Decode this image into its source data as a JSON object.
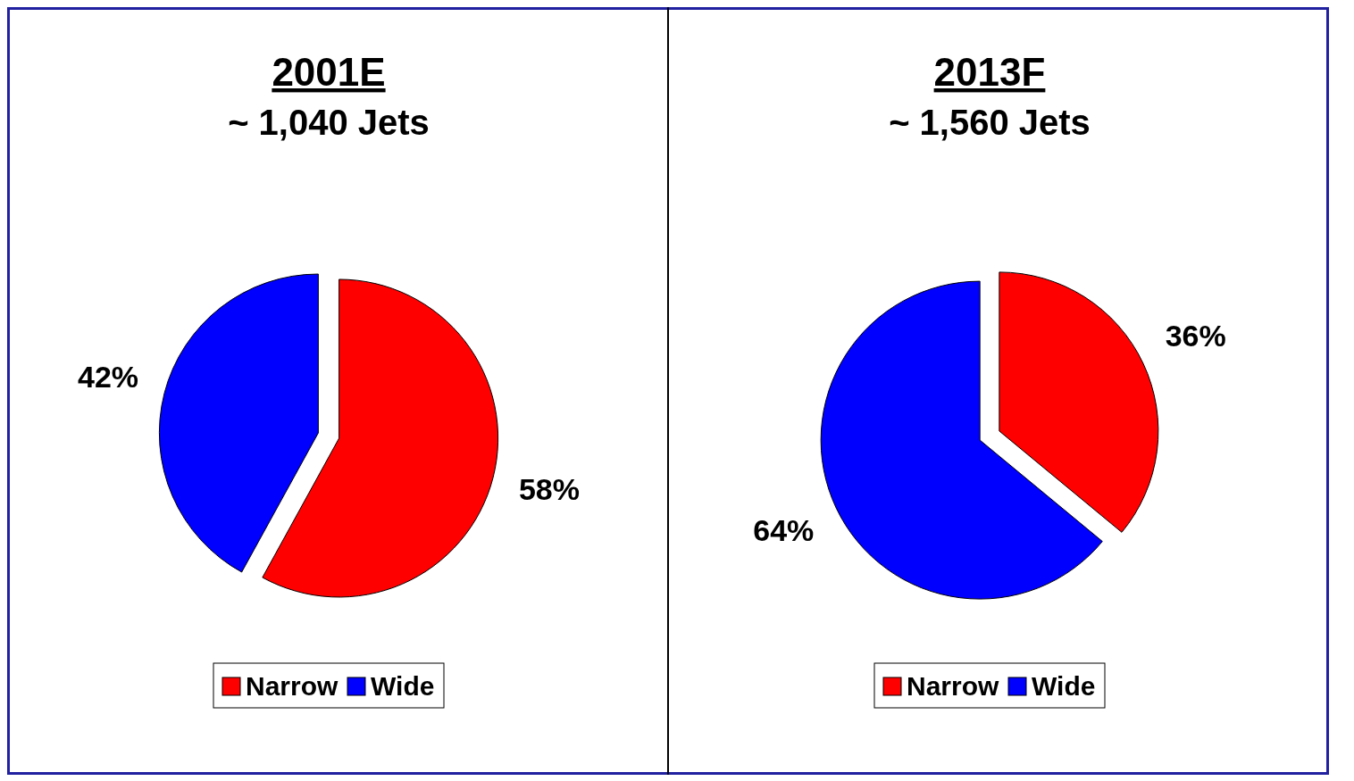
{
  "chart_data": [
    {
      "type": "pie",
      "title": "2001E",
      "subtitle": "~ 1,040 Jets",
      "categories": [
        "Narrow",
        "Wide"
      ],
      "values": [
        58,
        42
      ],
      "colors": [
        "#ff0000",
        "#0000ff"
      ],
      "value_labels": [
        "58%",
        "42%"
      ],
      "legend": "bottom"
    },
    {
      "type": "pie",
      "title": "2013F",
      "subtitle": "~ 1,560 Jets",
      "categories": [
        "Narrow",
        "Wide"
      ],
      "values": [
        36,
        64
      ],
      "colors": [
        "#ff0000",
        "#0000ff"
      ],
      "value_labels": [
        "36%",
        "64%"
      ],
      "legend": "bottom"
    }
  ]
}
